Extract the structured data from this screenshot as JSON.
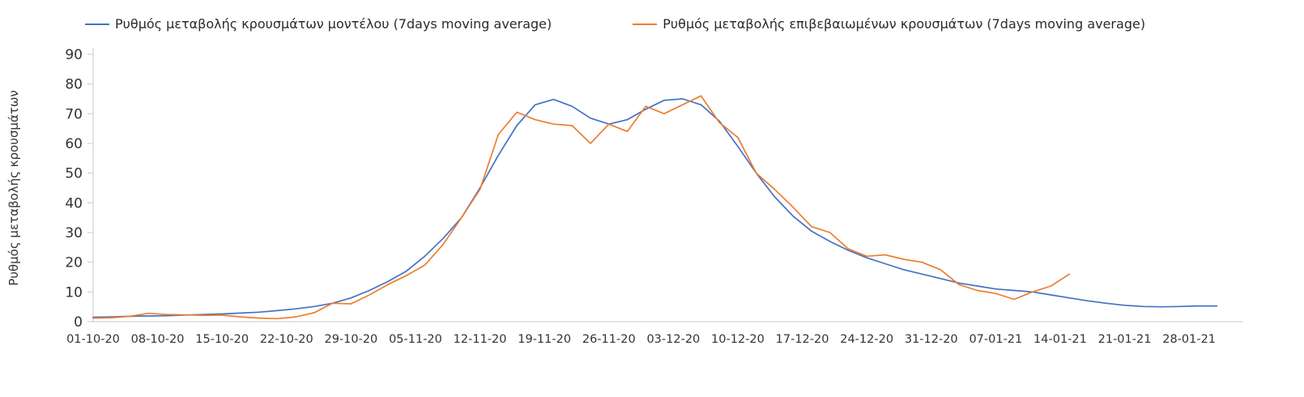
{
  "chart_data": {
    "type": "line",
    "title": "",
    "ylabel": "Ρυθμός μεταβολής κρουσμάτων",
    "xlabel": "",
    "ylim": [
      0,
      90
    ],
    "y_ticks": [
      0,
      10,
      20,
      30,
      40,
      50,
      60,
      70,
      80,
      90
    ],
    "x_tick_labels": [
      "01-10-20",
      "08-10-20",
      "15-10-20",
      "22-10-20",
      "29-10-20",
      "05-11-20",
      "12-11-20",
      "19-11-20",
      "26-11-20",
      "03-12-20",
      "10-12-20",
      "17-12-20",
      "24-12-20",
      "31-12-20",
      "07-01-21",
      "14-01-21",
      "21-01-21",
      "28-01-21"
    ],
    "x_tick_days": [
      0,
      7,
      14,
      21,
      28,
      35,
      42,
      49,
      56,
      63,
      70,
      77,
      84,
      91,
      98,
      105,
      112,
      119
    ],
    "x_domain_days": [
      0,
      124
    ],
    "grid": false,
    "legend_position": "top",
    "axis_color": "#c9c9c9",
    "tick_label_color": "#333333",
    "sample_days": [
      0,
      2,
      4,
      6,
      8,
      10,
      12,
      14,
      16,
      18,
      20,
      22,
      24,
      26,
      28,
      30,
      32,
      34,
      36,
      38,
      40,
      42,
      44,
      46,
      48,
      50,
      52,
      54,
      56,
      58,
      60,
      62,
      64,
      66,
      68,
      70,
      72,
      74,
      76,
      78,
      80,
      82,
      84,
      86,
      88,
      90,
      92,
      94,
      96,
      98,
      100,
      102,
      104,
      106,
      108,
      110,
      112,
      114,
      116,
      118,
      120,
      122
    ],
    "series": [
      {
        "name": "Ρυθμός μεταβολής κρουσμάτων μοντέλου (7days moving average)",
        "color": "#4472C4",
        "values": [
          1.5,
          1.6,
          1.8,
          1.9,
          2.0,
          2.2,
          2.4,
          2.6,
          2.9,
          3.2,
          3.7,
          4.3,
          5.1,
          6.2,
          8.0,
          10.5,
          13.5,
          17,
          22,
          28,
          35,
          45,
          56,
          66,
          73,
          74.8,
          72.5,
          68.5,
          66.5,
          68,
          71.5,
          74.5,
          75,
          73,
          67.5,
          59,
          50,
          42,
          35.5,
          30.5,
          27,
          24,
          21.5,
          19.5,
          17.5,
          16,
          14.5,
          13,
          12,
          11,
          10.5,
          10,
          9,
          8,
          7,
          6.2,
          5.5,
          5.1,
          5,
          5.1,
          5.3,
          5.3
        ]
      },
      {
        "name": "Ρυθμός μεταβολής επιβεβαιωμένων κρουσμάτων (7days moving average)",
        "color": "#ED7D31",
        "values": [
          1.2,
          1.3,
          1.8,
          2.8,
          2.4,
          2.3,
          2.1,
          2.2,
          1.6,
          1.2,
          1.0,
          1.6,
          3.0,
          6.2,
          6.0,
          9.0,
          12.5,
          15.5,
          19,
          26,
          35,
          44.5,
          63,
          70.5,
          68,
          66.5,
          66,
          60,
          66.5,
          64,
          72.5,
          70,
          73,
          76,
          67,
          62,
          50,
          44.5,
          38.5,
          32,
          30,
          24.5,
          22,
          22.5,
          21,
          20,
          17.5,
          12.5,
          10.5,
          9.5,
          7.5,
          10,
          12,
          16,
          null,
          null,
          null,
          null,
          null,
          null,
          null,
          null
        ]
      }
    ]
  }
}
